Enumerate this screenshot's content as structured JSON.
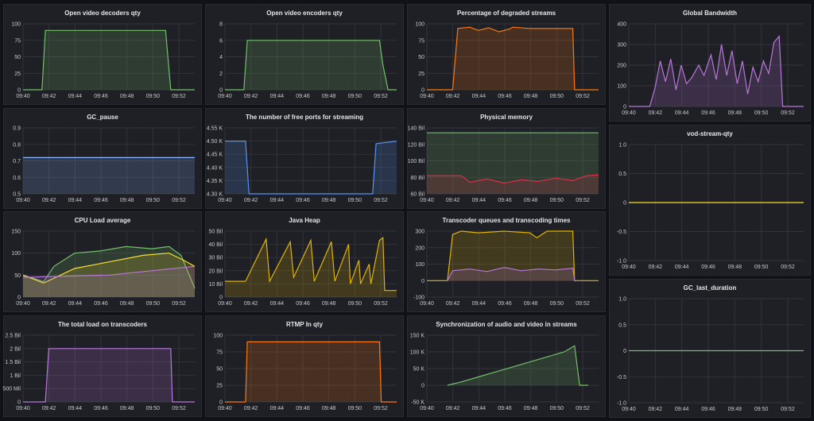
{
  "dashboard": {
    "background": "#111217",
    "panel_bg": "#1f2026",
    "panels": [
      {
        "id": "p1",
        "title": "Open video decoders qty",
        "color": "#73bf69",
        "chart_data": {
          "type": "area",
          "ylim": [
            0,
            100
          ],
          "yticks": [
            "0",
            "25",
            "50",
            "75",
            "100"
          ],
          "xticks": [
            "09:40",
            "09:42",
            "09:44",
            "09:46",
            "09:48",
            "09:50",
            "09:52"
          ],
          "points": [
            [
              0,
              0
            ],
            [
              0.06,
              0
            ],
            [
              0.11,
              0
            ],
            [
              0.13,
              90
            ],
            [
              0.83,
              90
            ],
            [
              0.86,
              0
            ],
            [
              1,
              0
            ]
          ]
        }
      },
      {
        "id": "p2",
        "title": "Open video encoders qty",
        "color": "#73bf69",
        "chart_data": {
          "type": "area",
          "ylim": [
            0,
            8
          ],
          "yticks": [
            "0",
            "2",
            "4",
            "6",
            "8"
          ],
          "xticks": [
            "09:40",
            "09:42",
            "09:44",
            "09:46",
            "09:48",
            "09:50",
            "09:52"
          ],
          "points": [
            [
              0,
              0
            ],
            [
              0.11,
              0
            ],
            [
              0.13,
              6
            ],
            [
              0.9,
              6
            ],
            [
              0.92,
              3
            ],
            [
              0.95,
              0
            ],
            [
              1,
              0
            ]
          ]
        }
      },
      {
        "id": "p3",
        "title": "Percentage of degraded streams",
        "color": "#ff780a",
        "chart_data": {
          "type": "area",
          "ylim": [
            0,
            100
          ],
          "yticks": [
            "0",
            "25",
            "50",
            "75",
            "100"
          ],
          "xticks": [
            "09:40",
            "09:42",
            "09:44",
            "09:46",
            "09:48",
            "09:50",
            "09:52"
          ],
          "points": [
            [
              0,
              0
            ],
            [
              0.15,
              0
            ],
            [
              0.18,
              93
            ],
            [
              0.25,
              95
            ],
            [
              0.3,
              90
            ],
            [
              0.36,
              94
            ],
            [
              0.42,
              88
            ],
            [
              0.48,
              92
            ],
            [
              0.5,
              95
            ],
            [
              0.6,
              93
            ],
            [
              0.85,
              93
            ],
            [
              0.86,
              0
            ],
            [
              1,
              0
            ]
          ]
        }
      },
      {
        "id": "p4",
        "title": "Global Bandwidth",
        "color": "#b877d9",
        "chart_data": {
          "type": "area",
          "ylim": [
            0,
            400
          ],
          "yticks": [
            "0",
            "100",
            "200",
            "300",
            "400"
          ],
          "xticks": [
            "09:40",
            "09:42",
            "09:44",
            "09:46",
            "09:48",
            "09:50",
            "09:52"
          ],
          "points": [
            [
              0,
              0
            ],
            [
              0.12,
              0
            ],
            [
              0.15,
              90
            ],
            [
              0.18,
              220
            ],
            [
              0.21,
              120
            ],
            [
              0.24,
              230
            ],
            [
              0.27,
              80
            ],
            [
              0.3,
              200
            ],
            [
              0.33,
              110
            ],
            [
              0.36,
              140
            ],
            [
              0.4,
              200
            ],
            [
              0.43,
              150
            ],
            [
              0.47,
              250
            ],
            [
              0.5,
              130
            ],
            [
              0.53,
              300
            ],
            [
              0.56,
              150
            ],
            [
              0.59,
              270
            ],
            [
              0.62,
              110
            ],
            [
              0.65,
              220
            ],
            [
              0.68,
              60
            ],
            [
              0.71,
              190
            ],
            [
              0.74,
              120
            ],
            [
              0.77,
              220
            ],
            [
              0.8,
              160
            ],
            [
              0.83,
              310
            ],
            [
              0.86,
              340
            ],
            [
              0.88,
              0
            ],
            [
              1,
              0
            ]
          ]
        }
      },
      {
        "id": "p5",
        "title": "GC_pause",
        "color": "#8ab8ff",
        "chart_data": {
          "type": "area",
          "ylim": [
            0.5,
            0.9
          ],
          "yticks": [
            "0.5",
            "0.6",
            "0.7",
            "0.8",
            "0.9"
          ],
          "xticks": [
            "09:40",
            "09:42",
            "09:44",
            "09:46",
            "09:48",
            "09:50",
            "09:52"
          ],
          "points": [
            [
              0,
              0.72
            ],
            [
              1,
              0.72
            ]
          ]
        }
      },
      {
        "id": "p6",
        "title": "The number of free ports for streaming",
        "color": "#5794f2",
        "chart_data": {
          "type": "area",
          "ylim": [
            4300,
            4550
          ],
          "yticks": [
            "4.30 K",
            "4.35 K",
            "4.40 K",
            "4.45 K",
            "4.50 K",
            "4.55 K"
          ],
          "xticks": [
            "09:40",
            "09:42",
            "09:44",
            "09:46",
            "09:48",
            "09:50",
            "09:52"
          ],
          "points": [
            [
              0,
              4500
            ],
            [
              0.12,
              4500
            ],
            [
              0.14,
              4300
            ],
            [
              0.86,
              4300
            ],
            [
              0.88,
              4490
            ],
            [
              1,
              4500
            ]
          ]
        }
      },
      {
        "id": "p7",
        "title": "Physical memory",
        "color": "#73bf69",
        "color2": "#e02f44",
        "chart_data": {
          "type": "area",
          "ylim": [
            60,
            140
          ],
          "yticks": [
            "60 Bil",
            "80 Bil",
            "100 Bil",
            "120 Bil",
            "140 Bil"
          ],
          "xticks": [
            "09:40",
            "09:42",
            "09:44",
            "09:46",
            "09:48",
            "09:50",
            "09:52"
          ],
          "points": [
            [
              0,
              134
            ],
            [
              1,
              134
            ]
          ],
          "points2": [
            [
              0,
              82
            ],
            [
              0.2,
              82
            ],
            [
              0.25,
              74
            ],
            [
              0.35,
              78
            ],
            [
              0.45,
              73
            ],
            [
              0.55,
              77
            ],
            [
              0.65,
              75
            ],
            [
              0.75,
              79
            ],
            [
              0.85,
              76
            ],
            [
              0.93,
              82
            ],
            [
              1,
              83
            ]
          ]
        }
      },
      {
        "id": "p8",
        "title": "vod-stream-qty",
        "color": "#fade2a",
        "chart_data": {
          "type": "line",
          "ylim": [
            -1,
            1
          ],
          "yticks": [
            "-1.0",
            "-0.5",
            "0",
            "0.5",
            "1.0"
          ],
          "xticks": [
            "09:40",
            "09:42",
            "09:44",
            "09:46",
            "09:48",
            "09:50",
            "09:52"
          ],
          "points": [
            [
              0,
              0
            ],
            [
              1,
              0
            ]
          ]
        }
      },
      {
        "id": "p9",
        "title": "CPU Load average",
        "color": "#73bf69",
        "color2": "#fade2a",
        "color3": "#b877d9",
        "chart_data": {
          "type": "area",
          "ylim": [
            0,
            150
          ],
          "yticks": [
            "0",
            "50",
            "100",
            "150"
          ],
          "xticks": [
            "09:40",
            "09:42",
            "09:44",
            "09:46",
            "09:48",
            "09:50",
            "09:52"
          ],
          "points": [
            [
              0,
              50
            ],
            [
              0.12,
              35
            ],
            [
              0.18,
              70
            ],
            [
              0.3,
              100
            ],
            [
              0.45,
              105
            ],
            [
              0.6,
              115
            ],
            [
              0.75,
              110
            ],
            [
              0.85,
              115
            ],
            [
              0.92,
              95
            ],
            [
              1,
              20
            ]
          ],
          "points2": [
            [
              0,
              50
            ],
            [
              0.12,
              32
            ],
            [
              0.3,
              65
            ],
            [
              0.5,
              80
            ],
            [
              0.7,
              95
            ],
            [
              0.85,
              100
            ],
            [
              0.93,
              85
            ],
            [
              1,
              70
            ]
          ],
          "points3": [
            [
              0,
              45
            ],
            [
              0.5,
              50
            ],
            [
              1,
              70
            ]
          ]
        }
      },
      {
        "id": "p10",
        "title": "Java Heap",
        "color": "#e0b400",
        "chart_data": {
          "type": "area",
          "ylim": [
            0,
            50
          ],
          "yticks": [
            "0",
            "10 Bil",
            "20 Bil",
            "30 Bil",
            "40 Bil",
            "50 Bil"
          ],
          "xticks": [
            "09:40",
            "09:42",
            "09:44",
            "09:46",
            "09:48",
            "09:50",
            "09:52"
          ],
          "points": [
            [
              0,
              12
            ],
            [
              0.12,
              12
            ],
            [
              0.24,
              44
            ],
            [
              0.26,
              12
            ],
            [
              0.38,
              42
            ],
            [
              0.4,
              15
            ],
            [
              0.5,
              43
            ],
            [
              0.52,
              12
            ],
            [
              0.62,
              42
            ],
            [
              0.64,
              12
            ],
            [
              0.72,
              40
            ],
            [
              0.73,
              10
            ],
            [
              0.78,
              28
            ],
            [
              0.79,
              10
            ],
            [
              0.84,
              25
            ],
            [
              0.85,
              10
            ],
            [
              0.9,
              43
            ],
            [
              0.92,
              45
            ],
            [
              0.93,
              5
            ],
            [
              1,
              5
            ]
          ]
        }
      },
      {
        "id": "p11",
        "title": "Transcoder queues and transcoding times",
        "color": "#e0b400",
        "color2": "#b877d9",
        "chart_data": {
          "type": "area",
          "ylim": [
            -100,
            300
          ],
          "yticks": [
            "-100",
            "0",
            "100",
            "200",
            "300"
          ],
          "xticks": [
            "09:40",
            "09:42",
            "09:44",
            "09:46",
            "09:48",
            "09:50",
            "09:52"
          ],
          "points": [
            [
              0,
              0
            ],
            [
              0.12,
              0
            ],
            [
              0.15,
              280
            ],
            [
              0.2,
              300
            ],
            [
              0.3,
              290
            ],
            [
              0.45,
              300
            ],
            [
              0.6,
              290
            ],
            [
              0.64,
              260
            ],
            [
              0.7,
              300
            ],
            [
              0.85,
              300
            ],
            [
              0.86,
              0
            ],
            [
              1,
              0
            ]
          ],
          "points2": [
            [
              0.12,
              0
            ],
            [
              0.15,
              60
            ],
            [
              0.25,
              70
            ],
            [
              0.35,
              55
            ],
            [
              0.45,
              80
            ],
            [
              0.55,
              60
            ],
            [
              0.65,
              70
            ],
            [
              0.75,
              65
            ],
            [
              0.85,
              75
            ],
            [
              0.86,
              0
            ]
          ]
        }
      },
      {
        "id": "p12",
        "title": "GC_last_duration",
        "color": "#73bf69",
        "chart_data": {
          "type": "line",
          "ylim": [
            -1,
            1
          ],
          "yticks": [
            "-1.0",
            "-0.5",
            "0",
            "0.5",
            "1.0"
          ],
          "xticks": [
            "09:40",
            "09:42",
            "09:44",
            "09:46",
            "09:48",
            "09:50",
            "09:52"
          ],
          "points": [
            [
              0,
              0
            ],
            [
              1,
              0
            ]
          ]
        }
      },
      {
        "id": "p13",
        "title": "The total load on transcoders",
        "color": "#b877d9",
        "chart_data": {
          "type": "area",
          "ylim": [
            0,
            2500
          ],
          "yticks": [
            "0",
            "500 Mil",
            "1 Bil",
            "1.5 Bil",
            "2 Bil",
            "2.5 Bil"
          ],
          "xticks": [
            "09:40",
            "09:42",
            "09:44",
            "09:46",
            "09:48",
            "09:50",
            "09:52"
          ],
          "points": [
            [
              0,
              0
            ],
            [
              0.13,
              0
            ],
            [
              0.15,
              2000
            ],
            [
              0.86,
              2000
            ],
            [
              0.87,
              0
            ],
            [
              1,
              0
            ]
          ]
        }
      },
      {
        "id": "p14",
        "title": "RTMP In qty",
        "color": "#ff780a",
        "chart_data": {
          "type": "area",
          "ylim": [
            0,
            100
          ],
          "yticks": [
            "0",
            "25",
            "50",
            "75",
            "100"
          ],
          "xticks": [
            "09:40",
            "09:42",
            "09:44",
            "09:46",
            "09:48",
            "09:50",
            "09:52"
          ],
          "points": [
            [
              0,
              0
            ],
            [
              0.12,
              0
            ],
            [
              0.13,
              90
            ],
            [
              0.9,
              90
            ],
            [
              0.91,
              0
            ],
            [
              1,
              0
            ]
          ]
        }
      },
      {
        "id": "p15",
        "title": "Synchronization of audio and video in streams",
        "color": "#73bf69",
        "chart_data": {
          "type": "area",
          "ylim": [
            -50,
            150
          ],
          "yticks": [
            "-50 K",
            "0",
            "50 K",
            "100 K",
            "150 K"
          ],
          "xticks": [
            "09:40",
            "09:42",
            "09:44",
            "09:46",
            "09:48",
            "09:50",
            "09:52"
          ],
          "points": [
            [
              0.12,
              0
            ],
            [
              0.2,
              10
            ],
            [
              0.3,
              25
            ],
            [
              0.4,
              40
            ],
            [
              0.5,
              55
            ],
            [
              0.6,
              70
            ],
            [
              0.7,
              85
            ],
            [
              0.8,
              100
            ],
            [
              0.86,
              118
            ],
            [
              0.89,
              0
            ],
            [
              0.94,
              0
            ]
          ]
        }
      }
    ]
  }
}
